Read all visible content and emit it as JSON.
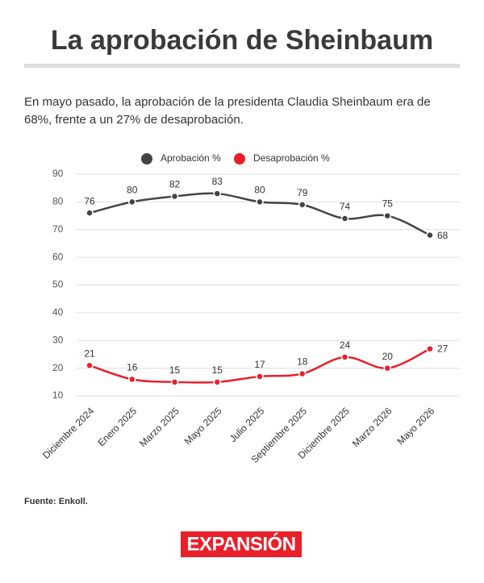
{
  "chart_data": {
    "type": "line",
    "title": "La aprobación de Sheinbaum",
    "subtitle": [
      "En mayo pasado, la aprobación de la presidenta Claudia Sheinbaum era de",
      "68%, frente a un 27% de desaprobación."
    ],
    "source": "Fuente: Enkoll.",
    "logo": "EXPANSIÓN",
    "categories": [
      "Diciembre 2024",
      "Enero 2025",
      "Marzo 2025",
      "Mayo 2025",
      "Julio 2025",
      "Septiembre 2025",
      "Diciembre 2025",
      "Marzo 2026",
      "Mayo 2026"
    ],
    "series": [
      {
        "name": "Aprobación %",
        "color": "#444444",
        "values": [
          76,
          80,
          82,
          83,
          80,
          79,
          74,
          75,
          68
        ]
      },
      {
        "name": "Desaprobación %",
        "color": "#e8202a",
        "values": [
          21,
          16,
          15,
          15,
          17,
          18,
          24,
          20,
          27
        ]
      }
    ],
    "ylim": [
      10,
      90
    ],
    "yticks": [
      10,
      20,
      30,
      40,
      50,
      60,
      70,
      80,
      90
    ],
    "grid": true
  }
}
